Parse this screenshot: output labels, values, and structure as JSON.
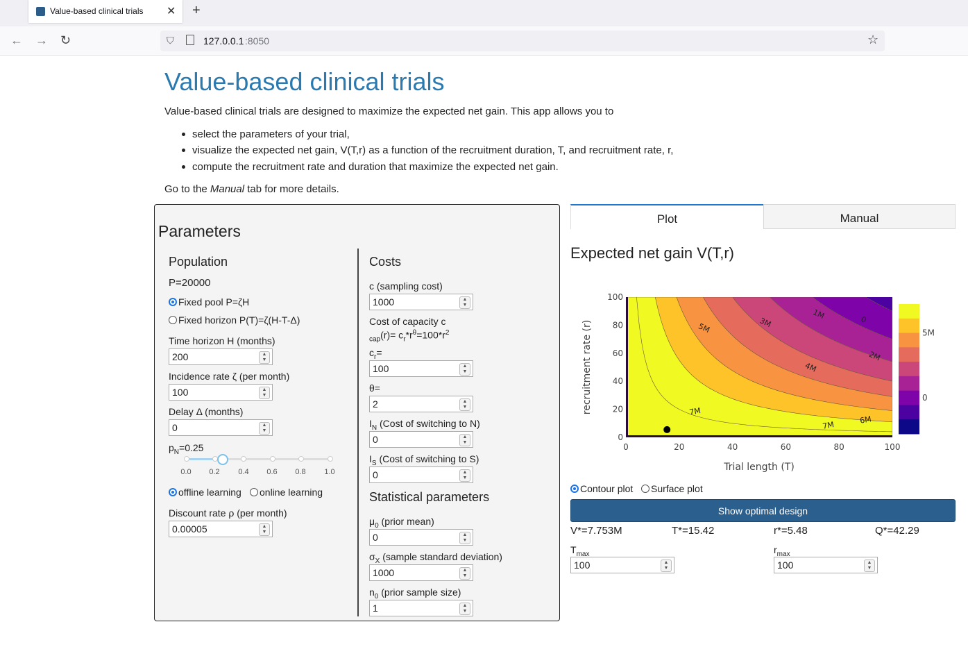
{
  "browser": {
    "tab_title": "Value-based clinical trials",
    "url_host": "127.0.0.1",
    "url_port": ":8050",
    "back_icon": "arrow-left-icon",
    "forward_icon": "arrow-right-icon",
    "reload_icon": "reload-icon",
    "star_icon": "star-icon"
  },
  "header": {
    "title": "Value-based clinical trials",
    "intro": "Value-based clinical trials are designed to maximize the expected net gain. This app allows you to",
    "bullets": [
      "select the parameters of your trial,",
      "visualize the expected net gain, V(T,r) as a function of the recruitment duration, T, and recruitment rate, r,",
      "compute the recruitment rate and duration that maximize the expected net gain."
    ],
    "note_pre": "Go to the ",
    "note_em": "Manual",
    "note_post": " tab for more details."
  },
  "params": {
    "title": "Parameters",
    "population": {
      "heading": "Population",
      "P": "P=20000",
      "fixed_pool": "Fixed pool P=ζH",
      "fixed_horizon": "Fixed horizon P(T)=ζ(H-T-Δ)",
      "horizon_label": "Time horizon H (months)",
      "horizon_value": "200",
      "incidence_label": "Incidence rate ζ (per month)",
      "incidence_value": "100",
      "delay_label": "Delay Δ (months)",
      "delay_value": "0",
      "pn_label_main": "p",
      "pn_label_sub": "N",
      "pn_label_val": "=0.25",
      "pn_value": 0.25,
      "slider_ticks": [
        "0.0",
        "0.2",
        "0.4",
        "0.6",
        "0.8",
        "1.0"
      ],
      "offline": "offline learning",
      "online": "online learning",
      "discount_label": "Discount rate ρ (per month)",
      "discount_value": "0.00005"
    },
    "costs": {
      "heading": "Costs",
      "c_label": "c (sampling cost)",
      "c_value": "1000",
      "cap_label_1": "Cost of capacity c",
      "cap_label_2a": "cap",
      "cap_label_2b": "(r)= c",
      "cap_label_2c": "r",
      "cap_label_2d": "*r",
      "cap_label_2e": "θ",
      "cap_label_2f": "=100*r",
      "cap_label_2g": "2",
      "cr_label_main": "c",
      "cr_label_sub": "r",
      "cr_label_eq": "=",
      "cr_value": "100",
      "theta_label": "θ=",
      "theta_value": "2",
      "in_label_main": "I",
      "in_label_sub": "N",
      "in_label_rest": " (Cost of switching to N)",
      "in_value": "0",
      "is_label_main": "I",
      "is_label_sub": "S",
      "is_label_rest": " (Cost of switching to S)",
      "is_value": "0"
    },
    "stats": {
      "heading": "Statistical parameters",
      "mu_label_main": "μ",
      "mu_label_sub": "0",
      "mu_label_rest": " (prior mean)",
      "mu_value": "0",
      "sigma_label_main": "σ",
      "sigma_label_sub": "X",
      "sigma_label_rest": " (sample standard deviation)",
      "sigma_value": "1000",
      "n0_label_main": "n",
      "n0_label_sub": "0",
      "n0_label_rest": " (prior sample size)",
      "n0_value": "1"
    }
  },
  "tabs": {
    "plot": "Plot",
    "manual": "Manual"
  },
  "plot_title": "Expected net gain V(T,r)",
  "chart_data": {
    "type": "contour",
    "xlabel": "Trial length (T)",
    "ylabel": "recruitment rate (r)",
    "xlim": [
      0,
      100
    ],
    "ylim": [
      0,
      100
    ],
    "x_ticks": [
      0,
      20,
      40,
      60,
      80,
      100
    ],
    "y_ticks": [
      0,
      20,
      40,
      60,
      80,
      100
    ],
    "contour_labels": [
      "7M",
      "7M",
      "6M",
      "5M",
      "4M",
      "3M",
      "2M",
      "1M",
      "0"
    ],
    "colorbar_ticks": [
      "5M",
      "0"
    ],
    "optimum_point": {
      "x": 15.42,
      "y": 5.48
    },
    "colors": [
      "#f0f921",
      "#fdc328",
      "#f89441",
      "#e56b5d",
      "#cb4679",
      "#a82296",
      "#7e03a8",
      "#4c02a1",
      "#0d0887"
    ]
  },
  "plot_options": {
    "contour": "Contour plot",
    "surface": "Surface plot"
  },
  "optimal_button": "Show optimal design",
  "results": {
    "V": "V*=7.753M",
    "T": "T*=15.42",
    "r": "r*=5.48",
    "Q": "Q*=42.29"
  },
  "limits": {
    "tmax_main": "T",
    "tmax_sub": "max",
    "tmax_value": "100",
    "rmax_main": "r",
    "rmax_sub": "max",
    "rmax_value": "100"
  }
}
